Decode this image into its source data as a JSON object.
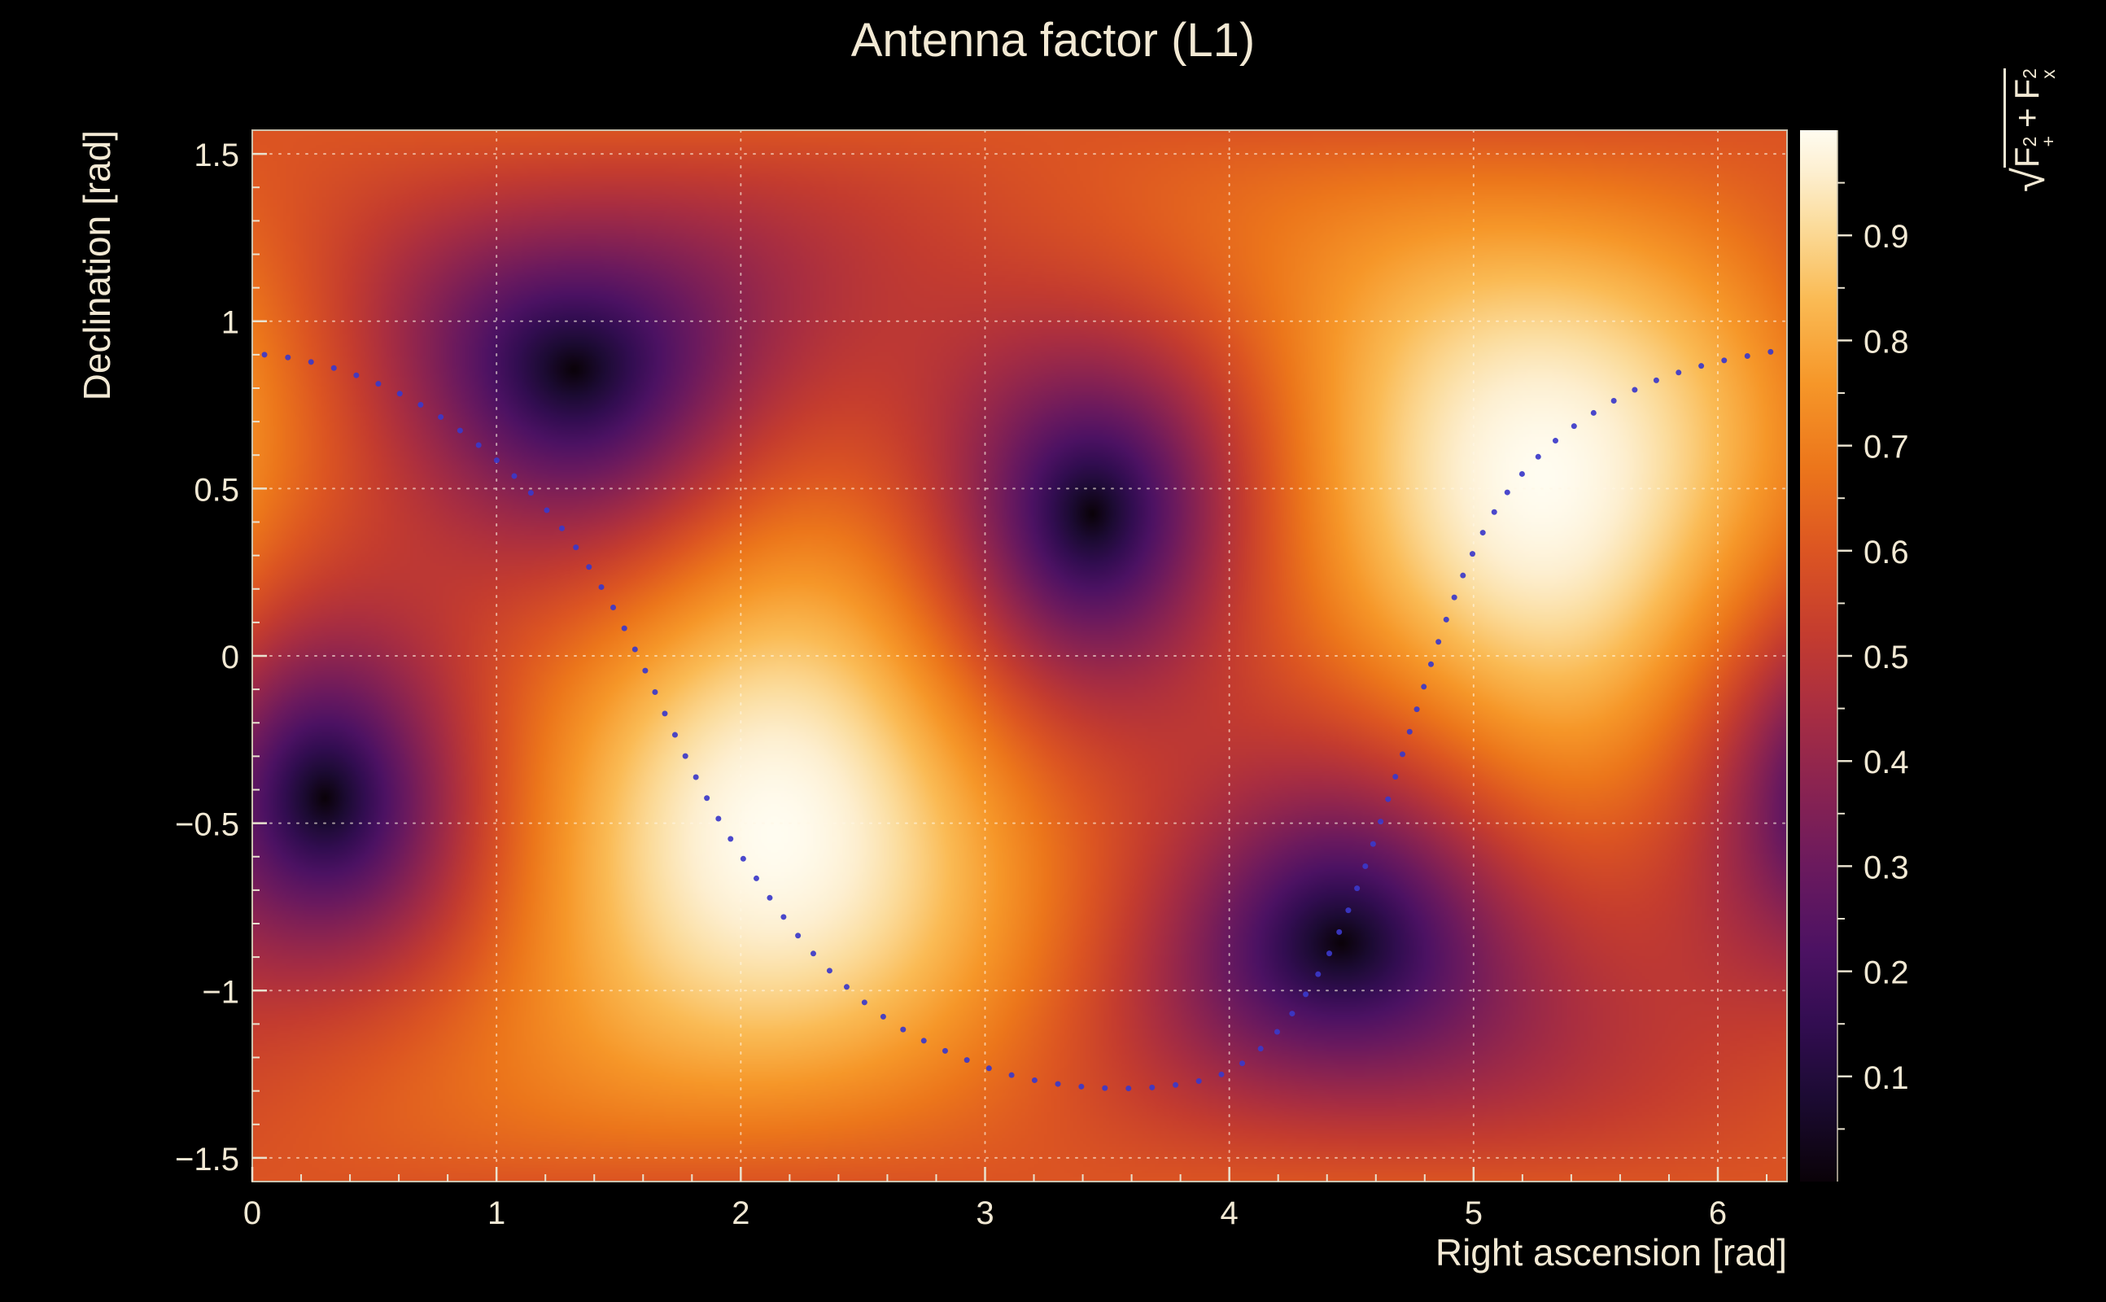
{
  "figure": {
    "title": "Antenna factor (L1)",
    "background": "#000000",
    "text_color": "#f2e9d4"
  },
  "chart_data": {
    "type": "heatmap",
    "title": "Antenna factor (L1)",
    "xlabel": "Right ascension [rad]",
    "ylabel": "Declination [rad]",
    "zlabel": "sqrt(F+^2 + Fx^2)",
    "zlabel_parts": {
      "radical": "√",
      "f1": "F",
      "sup1": "2",
      "sub1": "+",
      "plus": "+",
      "f2": "F",
      "sup2": "2",
      "sub2": "x"
    },
    "x_range": [
      0,
      6.2832
    ],
    "y_range": [
      -1.5708,
      1.5708
    ],
    "z_range": [
      0,
      1
    ],
    "grid": true,
    "x_ticks": [
      {
        "v": 0,
        "label": "0"
      },
      {
        "v": 1,
        "label": "1"
      },
      {
        "v": 2,
        "label": "2"
      },
      {
        "v": 3,
        "label": "3"
      },
      {
        "v": 4,
        "label": "4"
      },
      {
        "v": 5,
        "label": "5"
      },
      {
        "v": 6,
        "label": "6"
      }
    ],
    "y_ticks": [
      {
        "v": -1.5,
        "label": "−1.5"
      },
      {
        "v": -1,
        "label": "−1"
      },
      {
        "v": -0.5,
        "label": "−0.5"
      },
      {
        "v": 0,
        "label": "0"
      },
      {
        "v": 0.5,
        "label": "0.5"
      },
      {
        "v": 1,
        "label": "1"
      },
      {
        "v": 1.5,
        "label": "1.5"
      }
    ],
    "z_ticks": [
      {
        "v": 0.1,
        "label": "0.1"
      },
      {
        "v": 0.2,
        "label": "0.2"
      },
      {
        "v": 0.3,
        "label": "0.3"
      },
      {
        "v": 0.4,
        "label": "0.4"
      },
      {
        "v": 0.5,
        "label": "0.5"
      },
      {
        "v": 0.6,
        "label": "0.6"
      },
      {
        "v": 0.7,
        "label": "0.7"
      },
      {
        "v": 0.8,
        "label": "0.8"
      },
      {
        "v": 0.9,
        "label": "0.9"
      }
    ],
    "x_minor_step": 0.2,
    "y_minor_step": 0.1,
    "z_minor_step": 0.05,
    "field": {
      "model": "rms interferometer antenna pattern sqrt(F+^2+Fx^2)",
      "zenith": {
        "ra": 5.28,
        "dec": 0.533
      },
      "nadir": {
        "ra": 2.14,
        "dec": -0.533
      },
      "nulls": [
        {
          "ra": 1.3,
          "dec": 0.87
        },
        {
          "ra": 3.4,
          "dec": 0.4
        },
        {
          "ra": 4.44,
          "dec": -0.87
        },
        {
          "ra": 0.26,
          "dec": -0.4
        }
      ],
      "max_value": 1.0,
      "min_value": 0.0
    },
    "palette": [
      [
        0.0,
        "#0a0208"
      ],
      [
        0.08,
        "#1c0b33"
      ],
      [
        0.15,
        "#320d51"
      ],
      [
        0.22,
        "#4c1263"
      ],
      [
        0.3,
        "#6b1a5e"
      ],
      [
        0.38,
        "#8c2450"
      ],
      [
        0.45,
        "#a92e41"
      ],
      [
        0.52,
        "#c43c2f"
      ],
      [
        0.6,
        "#dc5522"
      ],
      [
        0.68,
        "#ec761b"
      ],
      [
        0.76,
        "#f69729"
      ],
      [
        0.84,
        "#fabb55"
      ],
      [
        0.91,
        "#fbdc9c"
      ],
      [
        0.96,
        "#fdefd0"
      ],
      [
        1.0,
        "#fffcf0"
      ]
    ],
    "track": {
      "description": "dotted blue source track overlaid on the antenna map",
      "color": "#3b38c9",
      "style": "dotted",
      "dot_radius": 3.5,
      "dot_spacing_px": 29,
      "points": [
        [
          0.05,
          0.9
        ],
        [
          0.2,
          0.885
        ],
        [
          0.4,
          0.845
        ],
        [
          0.6,
          0.785
        ],
        [
          0.8,
          0.7
        ],
        [
          1.0,
          0.585
        ],
        [
          1.15,
          0.48
        ],
        [
          1.3,
          0.35
        ],
        [
          1.45,
          0.18
        ],
        [
          1.58,
          0.0
        ],
        [
          1.72,
          -0.22
        ],
        [
          1.88,
          -0.45
        ],
        [
          2.05,
          -0.65
        ],
        [
          2.25,
          -0.85
        ],
        [
          2.45,
          -1.0
        ],
        [
          2.65,
          -1.11
        ],
        [
          2.9,
          -1.2
        ],
        [
          3.15,
          -1.26
        ],
        [
          3.45,
          -1.29
        ],
        [
          3.75,
          -1.285
        ],
        [
          4.0,
          -1.24
        ],
        [
          4.2,
          -1.12
        ],
        [
          4.38,
          -0.93
        ],
        [
          4.52,
          -0.7
        ],
        [
          4.64,
          -0.45
        ],
        [
          4.75,
          -0.2
        ],
        [
          4.86,
          0.05
        ],
        [
          4.98,
          0.28
        ],
        [
          5.12,
          0.47
        ],
        [
          5.3,
          0.62
        ],
        [
          5.5,
          0.73
        ],
        [
          5.72,
          0.815
        ],
        [
          5.95,
          0.87
        ],
        [
          6.15,
          0.9
        ],
        [
          6.27,
          0.915
        ]
      ]
    }
  }
}
